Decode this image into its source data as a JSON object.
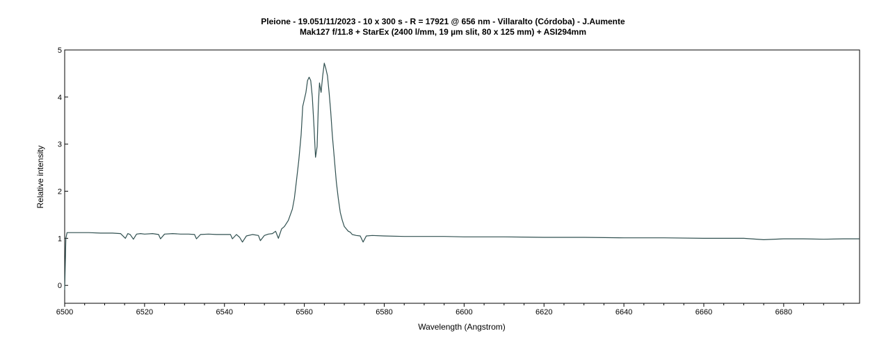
{
  "chart_data": {
    "type": "line",
    "title": "Pleione - 19.051/11/2023 - 10 x 300 s - R = 17921 @ 656 nm - Villaralto (Córdoba) - J.Aumente",
    "subtitle": "Mak127 f/11.8 + StarEx (2400 l/mm, 19 µm slit, 80 x 125 mm) + ASI294mm",
    "xlabel": "Wavelength (Angstrom)",
    "ylabel": "Relative intensity",
    "xlim": [
      6500,
      6699
    ],
    "ylim": [
      -0.38,
      5.0
    ],
    "xticks": [
      6500,
      6520,
      6540,
      6560,
      6580,
      6600,
      6620,
      6640,
      6660,
      6680
    ],
    "yticks": [
      0,
      1,
      2,
      3,
      4,
      5
    ],
    "grid": false,
    "legend": "none",
    "line_color": "#2f4f4f",
    "series": [
      {
        "x": [
          6500,
          6500.3,
          6500.6,
          6503,
          6506,
          6509,
          6512,
          6514,
          6515.2,
          6515.8,
          6516.4,
          6517.2,
          6518,
          6519,
          6520,
          6522,
          6523.5,
          6524,
          6525,
          6527,
          6529,
          6531,
          6532.5,
          6533,
          6534,
          6536,
          6538,
          6540,
          6541.5,
          6542,
          6543,
          6543.8,
          6544.5,
          6545.5,
          6547,
          6548.5,
          6549,
          6550,
          6551,
          6552,
          6552.8,
          6553.5,
          6554.3,
          6555,
          6556,
          6557,
          6557.5,
          6558,
          6558.6,
          6559.2,
          6559.6,
          6560,
          6560.4,
          6560.8,
          6561.2,
          6561.6,
          6562,
          6562.4,
          6562.8,
          6563.2,
          6563.5,
          6563.8,
          6564.2,
          6564.6,
          6565,
          6565.4,
          6565.8,
          6566.2,
          6566.6,
          6567,
          6567.5,
          6568,
          6568.5,
          6569,
          6569.5,
          6570,
          6570.5,
          6571,
          6571.5,
          6572,
          6573,
          6574,
          6574.7,
          6575.5,
          6577,
          6580,
          6585,
          6590,
          6595,
          6600,
          6610,
          6620,
          6630,
          6640,
          6650,
          6660,
          6670,
          6675,
          6680,
          6685,
          6690,
          6695,
          6699
        ],
        "y": [
          -0.1,
          1.0,
          1.12,
          1.12,
          1.12,
          1.11,
          1.11,
          1.1,
          1.0,
          1.1,
          1.08,
          0.98,
          1.09,
          1.1,
          1.09,
          1.1,
          1.08,
          0.99,
          1.09,
          1.1,
          1.09,
          1.09,
          1.08,
          0.99,
          1.08,
          1.09,
          1.08,
          1.08,
          1.08,
          0.99,
          1.08,
          1.02,
          0.92,
          1.05,
          1.08,
          1.06,
          0.95,
          1.06,
          1.09,
          1.1,
          1.15,
          1.0,
          1.2,
          1.25,
          1.38,
          1.62,
          1.85,
          2.2,
          2.65,
          3.2,
          3.8,
          3.95,
          4.1,
          4.35,
          4.42,
          4.35,
          4.0,
          3.4,
          2.72,
          2.95,
          3.8,
          4.3,
          4.1,
          4.45,
          4.72,
          4.6,
          4.45,
          4.1,
          3.7,
          3.2,
          2.7,
          2.2,
          1.85,
          1.55,
          1.38,
          1.25,
          1.2,
          1.15,
          1.13,
          1.08,
          1.06,
          1.05,
          0.92,
          1.05,
          1.06,
          1.05,
          1.04,
          1.04,
          1.04,
          1.03,
          1.03,
          1.02,
          1.02,
          1.01,
          1.01,
          1.0,
          1.0,
          0.97,
          0.99,
          0.99,
          0.98,
          0.99,
          0.99
        ]
      }
    ]
  }
}
